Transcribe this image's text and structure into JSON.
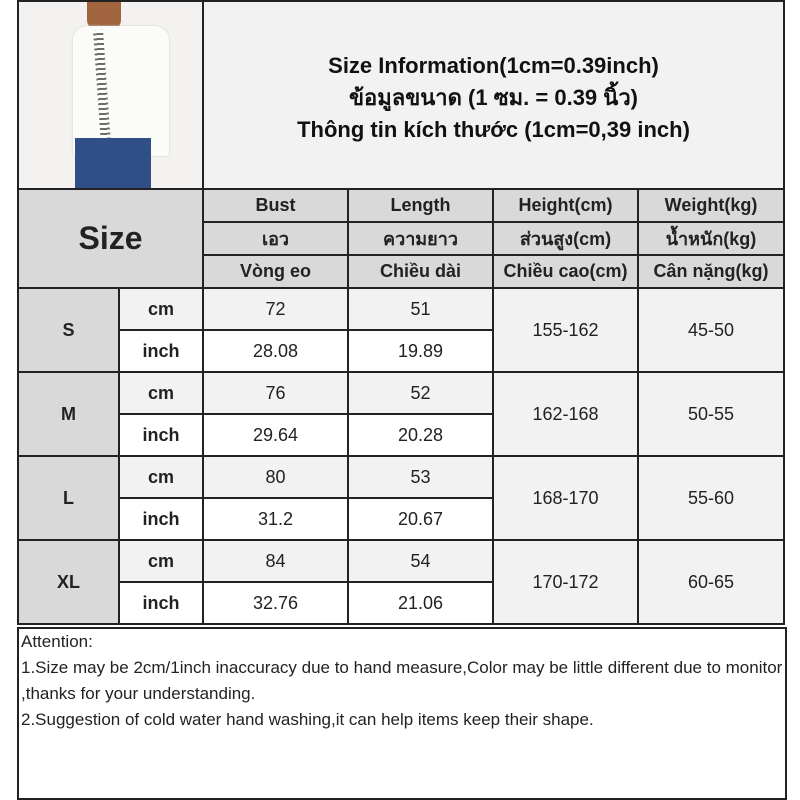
{
  "title_lines": [
    "Size Information(1cm=0.39inch)",
    "ข้อมูลขนาด (1 ซม. = 0.39 นิ้ว)",
    "Thông tin kích thước (1cm=0,39 inch)"
  ],
  "size_header": "Size",
  "columns": [
    [
      "Bust",
      "เอว",
      "Vòng eo"
    ],
    [
      "Length",
      "ความยาว",
      "Chiều dài"
    ],
    [
      "Height(cm)",
      "ส่วนสูง(cm)",
      "Chiều cao(cm)"
    ],
    [
      "Weight(kg)",
      "น้ำหนัก(kg)",
      "Cân nặng(kg)"
    ]
  ],
  "rows": [
    {
      "size": "S",
      "cm_label": "cm",
      "inch_label": "inch",
      "bust_cm": "72",
      "length_cm": "51",
      "bust_inch": "28.08",
      "length_inch": "19.89",
      "height": "155-162",
      "weight": "45-50"
    },
    {
      "size": "M",
      "cm_label": "cm",
      "inch_label": "inch",
      "bust_cm": "76",
      "length_cm": "52",
      "bust_inch": "29.64",
      "length_inch": "20.28",
      "height": "162-168",
      "weight": "50-55"
    },
    {
      "size": "L",
      "cm_label": "cm",
      "inch_label": "inch",
      "bust_cm": "80",
      "length_cm": "53",
      "bust_inch": "31.2",
      "length_inch": "20.67",
      "height": "168-170",
      "weight": "55-60"
    },
    {
      "size": "XL",
      "cm_label": "cm",
      "inch_label": "inch",
      "bust_cm": "84",
      "length_cm": "54",
      "bust_inch": "32.76",
      "length_inch": "21.06",
      "height": "170-172",
      "weight": "60-65"
    }
  ],
  "notes": [
    "Attention:",
    "1.Size may be 2cm/1inch inaccuracy due to hand measure,Color may be little different due to monitor ,thanks for your understanding.",
    "2.Suggestion of cold water hand washing,it can help items keep their shape."
  ]
}
